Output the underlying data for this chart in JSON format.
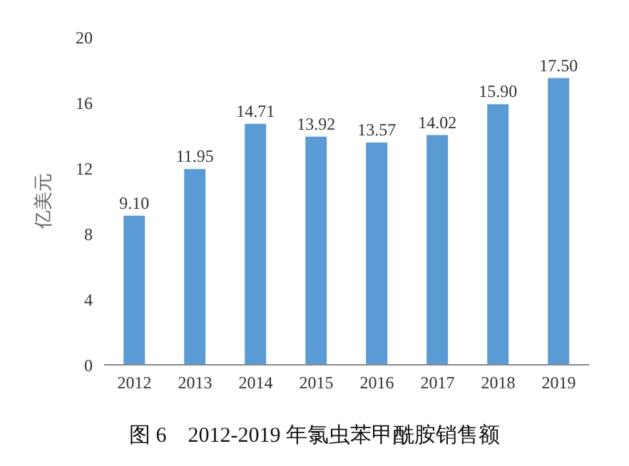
{
  "chart_data": {
    "type": "bar",
    "title": "图 6　2012-2019 年氯虫苯甲酰胺销售额",
    "ylabel": "亿美元",
    "categories": [
      "2012",
      "2013",
      "2014",
      "2015",
      "2016",
      "2017",
      "2018",
      "2019"
    ],
    "values": [
      9.1,
      11.95,
      14.71,
      13.92,
      13.57,
      14.02,
      15.9,
      17.5
    ],
    "value_labels": [
      "9.10",
      "11.95",
      "14.71",
      "13.92",
      "13.57",
      "14.02",
      "15.90",
      "17.50"
    ],
    "color": "#5b9bd5",
    "ylim": [
      0,
      20
    ],
    "yticks": [
      0,
      4,
      8,
      12,
      16,
      20
    ],
    "grid": false,
    "legend": false
  }
}
